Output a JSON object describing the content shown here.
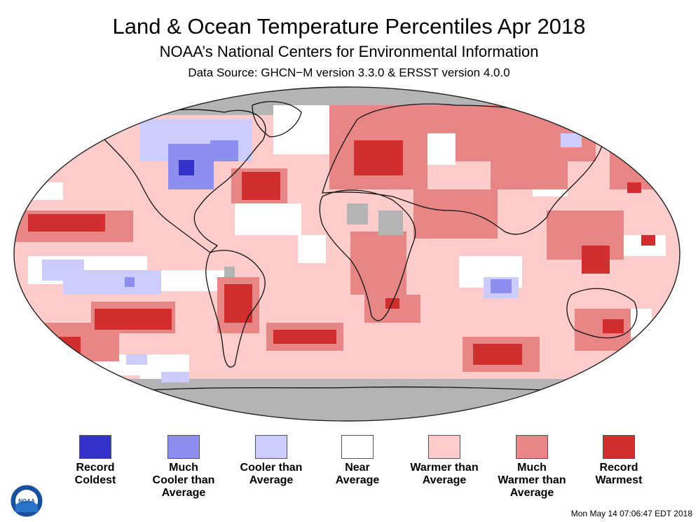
{
  "header": {
    "title": "Land & Ocean Temperature Percentiles Apr 2018",
    "subtitle": "NOAA’s National Centers for Environmental Information",
    "source": "Data Source: GHCN−M version 3.3.0 & ERSST version 4.0.0"
  },
  "colors": {
    "record_coldest": "#3333cc",
    "much_cooler": "#8e8ef0",
    "cooler": "#ccccff",
    "near": "#ffffff",
    "warmer": "#ffcccc",
    "much_warmer": "#e88585",
    "record_warmest": "#d12f2f",
    "no_data": "#b4b4b4",
    "coast": "#111111"
  },
  "legend": {
    "items": [
      {
        "key": "record_coldest",
        "lines": [
          "Record",
          "Coldest"
        ]
      },
      {
        "key": "much_cooler",
        "lines": [
          "Much",
          "Cooler than",
          "Average"
        ]
      },
      {
        "key": "cooler",
        "lines": [
          "Cooler than",
          "Average"
        ]
      },
      {
        "key": "near",
        "lines": [
          "Near",
          "Average"
        ]
      },
      {
        "key": "warmer",
        "lines": [
          "Warmer than",
          "Average"
        ]
      },
      {
        "key": "much_warmer",
        "lines": [
          "Much",
          "Warmer than",
          "Average"
        ]
      },
      {
        "key": "record_warmest",
        "lines": [
          "Record",
          "Warmest"
        ]
      }
    ]
  },
  "timestamp": "Mon May 14 07:06:47 EDT 2018",
  "logo": {
    "text": "NOAA"
  }
}
